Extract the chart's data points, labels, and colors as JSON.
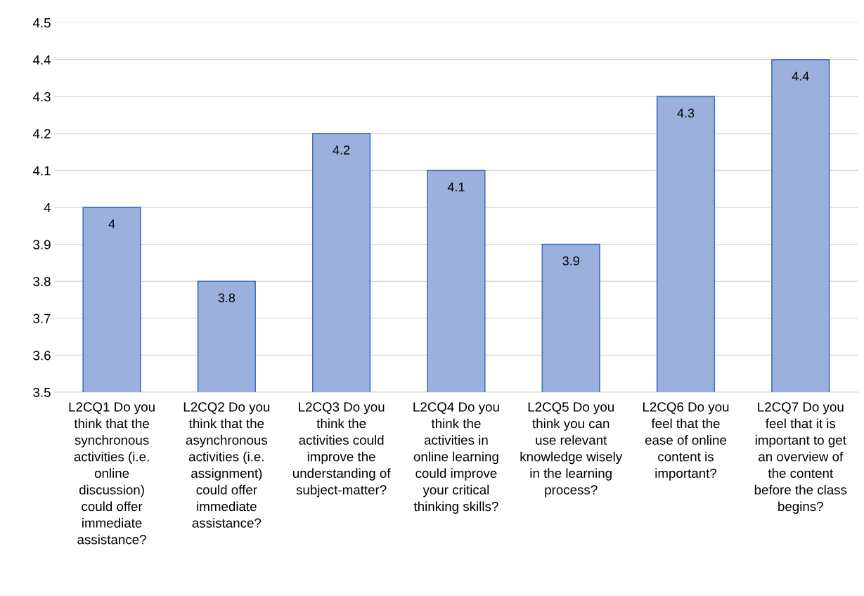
{
  "chart_data": {
    "type": "bar",
    "categories": [
      "L2CQ1 Do you think that the synchronous activities (i.e. online discussion) could offer immediate assistance?",
      "L2CQ2 Do you think that the asynchronous activities (i.e. assignment) could offer immediate assistance?",
      "L2CQ3 Do you think the activities could improve the understanding of subject-matter?",
      "L2CQ4 Do you think the activities in online learning could improve your critical thinking skills?",
      "L2CQ5 Do you think you can use relevant knowledge wisely in the learning process?",
      "L2CQ6 Do you feel that the ease of online content is important?",
      "L2CQ7 Do you feel that it is important to get an overview of the content before the class begins?"
    ],
    "values": [
      4,
      3.8,
      4.2,
      4.1,
      3.9,
      4.3,
      4.4
    ],
    "color": "#9cb0de",
    "ylim": [
      3.5,
      4.5
    ],
    "yticks": [
      3.5,
      3.6,
      3.7,
      3.8,
      3.9,
      4,
      4.1,
      4.2,
      4.3,
      4.4,
      4.5
    ],
    "grid": "y",
    "data_labels": true
  }
}
